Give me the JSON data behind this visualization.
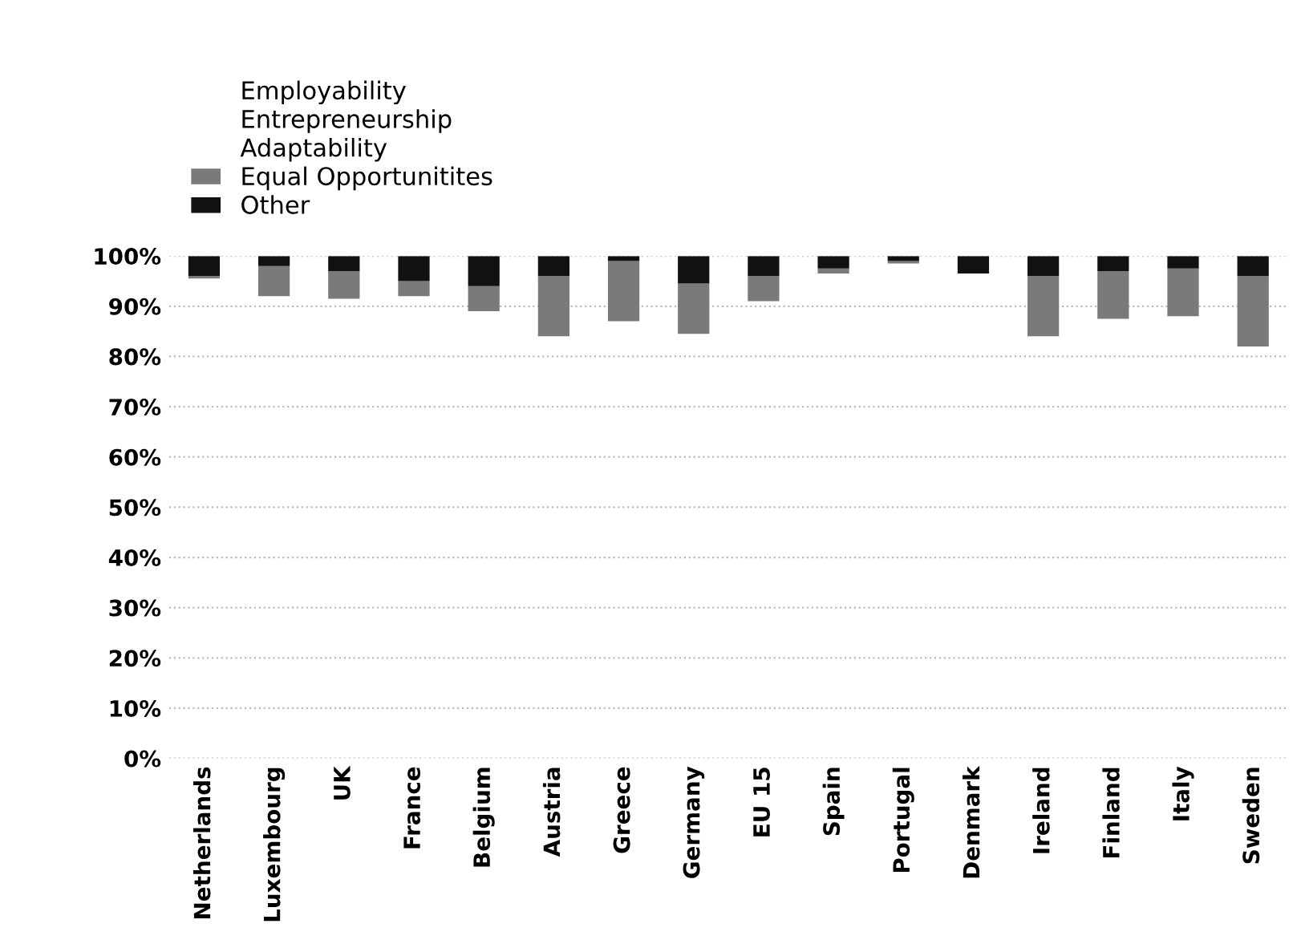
{
  "chart_data": {
    "type": "bar",
    "categories": [
      "Netherlands",
      "Luxembourg",
      "UK",
      "France",
      "Belgium",
      "Austria",
      "Greece",
      "Germany",
      "EU 15",
      "Spain",
      "Portugal",
      "Denmark",
      "Ireland",
      "Finland",
      "Italy",
      "Sweden"
    ],
    "series": [
      {
        "name": "Employability",
        "values": [
          null,
          null,
          null,
          null,
          null,
          null,
          null,
          null,
          null,
          null,
          null,
          null,
          null,
          null,
          null,
          null
        ]
      },
      {
        "name": "Entrepreneurship",
        "values": [
          null,
          null,
          null,
          null,
          null,
          null,
          null,
          null,
          null,
          null,
          null,
          null,
          null,
          null,
          null,
          null
        ]
      },
      {
        "name": "Adaptability",
        "values": [
          null,
          null,
          null,
          null,
          null,
          null,
          null,
          null,
          null,
          null,
          null,
          null,
          null,
          null,
          null,
          null
        ]
      },
      {
        "name": "Equal Opportunitites",
        "color": "#7a7a7a",
        "values": [
          0.5,
          6,
          5.5,
          3,
          5,
          12,
          12,
          10,
          5,
          1,
          0.5,
          null,
          12,
          9.5,
          9.5,
          14
        ],
        "base": [
          95.5,
          92,
          91.5,
          92,
          89,
          84,
          87,
          84.5,
          91,
          96.5,
          98.5,
          null,
          84,
          87.5,
          88,
          82
        ]
      },
      {
        "name": "Other",
        "color": "#111111",
        "values": [
          4,
          2,
          3,
          5,
          6,
          4,
          1,
          5.5,
          4,
          2.5,
          1,
          3.5,
          4,
          3,
          2.5,
          4
        ],
        "base": [
          96,
          98,
          97,
          95,
          94,
          96,
          99,
          94.5,
          96,
          97.5,
          99,
          96.5,
          96,
          97,
          97.5,
          96
        ]
      }
    ],
    "ylim": [
      0,
      100
    ],
    "yticks": [
      {
        "value": 0,
        "label": "0%"
      },
      {
        "value": 10,
        "label": "10%"
      },
      {
        "value": 20,
        "label": "20%"
      },
      {
        "value": 30,
        "label": "30%"
      },
      {
        "value": 40,
        "label": "40%"
      },
      {
        "value": 50,
        "label": "50%"
      },
      {
        "value": 60,
        "label": "60%"
      },
      {
        "value": 70,
        "label": "70%"
      },
      {
        "value": 80,
        "label": "80%"
      },
      {
        "value": 90,
        "label": "90%"
      },
      {
        "value": 100,
        "label": "100%"
      }
    ],
    "grid": "y",
    "legend": "top left"
  }
}
